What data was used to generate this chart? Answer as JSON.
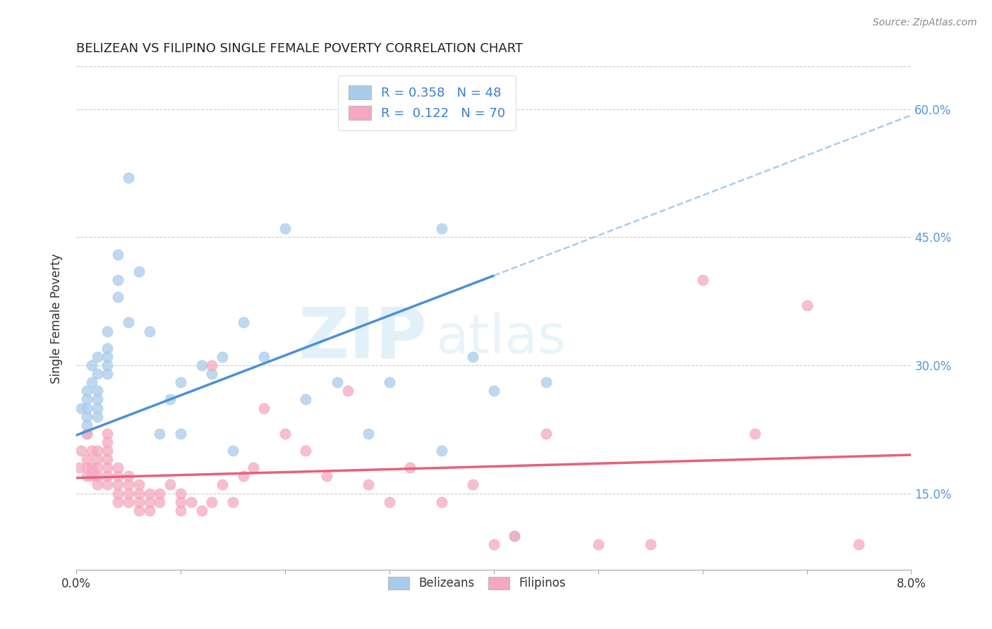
{
  "title": "BELIZEAN VS FILIPINO SINGLE FEMALE POVERTY CORRELATION CHART",
  "source": "Source: ZipAtlas.com",
  "ylabel": "Single Female Poverty",
  "yticks": [
    0.15,
    0.3,
    0.45,
    0.6
  ],
  "ytick_labels": [
    "15.0%",
    "30.0%",
    "45.0%",
    "60.0%"
  ],
  "xlim": [
    0.0,
    0.08
  ],
  "ylim": [
    0.06,
    0.65
  ],
  "belizean_color": "#A8CCEA",
  "filipino_color": "#F5A8BF",
  "belizean_line_color": "#4A90D9",
  "filipino_line_color": "#E8607A",
  "regression_dashed_color": "#AACCEE",
  "legend_belizean_label": "R = 0.358   N = 48",
  "legend_filipino_label": "R =  0.122   N = 70",
  "watermark_zip": "ZIP",
  "watermark_atlas": "atlas",
  "belizean_x": [
    0.0005,
    0.001,
    0.001,
    0.001,
    0.001,
    0.001,
    0.001,
    0.0015,
    0.0015,
    0.002,
    0.002,
    0.002,
    0.002,
    0.002,
    0.002,
    0.003,
    0.003,
    0.003,
    0.003,
    0.003,
    0.004,
    0.004,
    0.004,
    0.005,
    0.005,
    0.006,
    0.007,
    0.008,
    0.009,
    0.01,
    0.01,
    0.012,
    0.013,
    0.014,
    0.015,
    0.016,
    0.018,
    0.02,
    0.022,
    0.025,
    0.028,
    0.03,
    0.035,
    0.038,
    0.04,
    0.042,
    0.045,
    0.035
  ],
  "belizean_y": [
    0.25,
    0.26,
    0.27,
    0.24,
    0.25,
    0.23,
    0.22,
    0.28,
    0.3,
    0.29,
    0.31,
    0.25,
    0.26,
    0.24,
    0.27,
    0.34,
    0.3,
    0.29,
    0.32,
    0.31,
    0.38,
    0.4,
    0.43,
    0.52,
    0.35,
    0.41,
    0.34,
    0.22,
    0.26,
    0.22,
    0.28,
    0.3,
    0.29,
    0.31,
    0.2,
    0.35,
    0.31,
    0.46,
    0.26,
    0.28,
    0.22,
    0.28,
    0.46,
    0.31,
    0.27,
    0.1,
    0.28,
    0.2
  ],
  "filipino_x": [
    0.0003,
    0.0005,
    0.001,
    0.001,
    0.001,
    0.001,
    0.0015,
    0.0015,
    0.0015,
    0.002,
    0.002,
    0.002,
    0.002,
    0.002,
    0.003,
    0.003,
    0.003,
    0.003,
    0.003,
    0.003,
    0.003,
    0.004,
    0.004,
    0.004,
    0.004,
    0.004,
    0.005,
    0.005,
    0.005,
    0.005,
    0.006,
    0.006,
    0.006,
    0.006,
    0.007,
    0.007,
    0.007,
    0.008,
    0.008,
    0.009,
    0.01,
    0.01,
    0.01,
    0.011,
    0.012,
    0.013,
    0.013,
    0.014,
    0.015,
    0.016,
    0.017,
    0.018,
    0.02,
    0.022,
    0.024,
    0.026,
    0.028,
    0.03,
    0.032,
    0.035,
    0.038,
    0.04,
    0.042,
    0.045,
    0.05,
    0.055,
    0.06,
    0.065,
    0.07,
    0.075
  ],
  "filipino_y": [
    0.18,
    0.2,
    0.18,
    0.17,
    0.19,
    0.22,
    0.17,
    0.18,
    0.2,
    0.16,
    0.17,
    0.18,
    0.19,
    0.2,
    0.16,
    0.17,
    0.18,
    0.19,
    0.2,
    0.21,
    0.22,
    0.14,
    0.15,
    0.16,
    0.17,
    0.18,
    0.14,
    0.15,
    0.16,
    0.17,
    0.13,
    0.14,
    0.15,
    0.16,
    0.13,
    0.14,
    0.15,
    0.14,
    0.15,
    0.16,
    0.13,
    0.14,
    0.15,
    0.14,
    0.13,
    0.14,
    0.3,
    0.16,
    0.14,
    0.17,
    0.18,
    0.25,
    0.22,
    0.2,
    0.17,
    0.27,
    0.16,
    0.14,
    0.18,
    0.14,
    0.16,
    0.09,
    0.1,
    0.22,
    0.09,
    0.09,
    0.4,
    0.22,
    0.37,
    0.09
  ],
  "belizean_line_x0": 0.0,
  "belizean_line_y0": 0.218,
  "belizean_line_x1": 0.04,
  "belizean_line_y1": 0.405,
  "filipino_line_x0": 0.0,
  "filipino_line_y0": 0.168,
  "filipino_line_x1": 0.08,
  "filipino_line_y1": 0.195,
  "dashed_line_x0": 0.04,
  "dashed_line_y0": 0.405,
  "dashed_line_x1": 0.08,
  "dashed_line_y1": 0.593
}
